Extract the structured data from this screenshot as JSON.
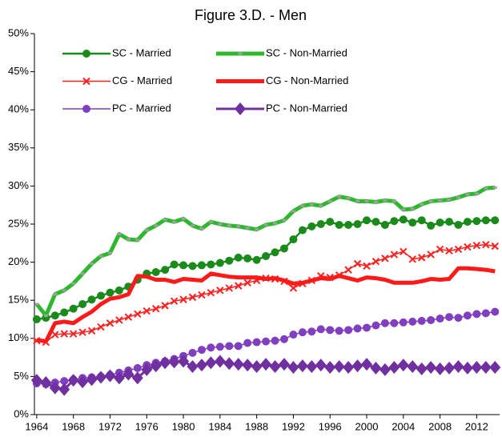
{
  "chart_data": {
    "type": "line",
    "title": "Figure 3.D. - Men",
    "x": [
      1964,
      1965,
      1966,
      1967,
      1968,
      1969,
      1970,
      1971,
      1972,
      1973,
      1974,
      1975,
      1976,
      1977,
      1978,
      1979,
      1980,
      1981,
      1982,
      1983,
      1984,
      1985,
      1986,
      1987,
      1988,
      1989,
      1990,
      1991,
      1992,
      1993,
      1994,
      1995,
      1996,
      1997,
      1998,
      1999,
      2000,
      2001,
      2002,
      2003,
      2004,
      2005,
      2006,
      2007,
      2008,
      2009,
      2010,
      2011,
      2012,
      2013,
      2014
    ],
    "xlim": [
      1963.75,
      2014.5
    ],
    "xticks": [
      1964,
      1968,
      1972,
      1976,
      1980,
      1984,
      1988,
      1992,
      1996,
      2000,
      2004,
      2008,
      2012
    ],
    "ylim": [
      0,
      50
    ],
    "yticks": [
      {
        "value": 0,
        "label": "0%"
      },
      {
        "value": 5,
        "label": "5%"
      },
      {
        "value": 10,
        "label": "10%"
      },
      {
        "value": 15,
        "label": "15%"
      },
      {
        "value": 20,
        "label": "20%"
      },
      {
        "value": 25,
        "label": "25%"
      },
      {
        "value": 30,
        "label": "30%"
      },
      {
        "value": 35,
        "label": "35%"
      },
      {
        "value": 40,
        "label": "40%"
      },
      {
        "value": 45,
        "label": "45%"
      },
      {
        "value": 50,
        "label": "50%"
      }
    ],
    "series": [
      {
        "name": "SC - Married",
        "color": "#1a8a1a",
        "line_width": 2.5,
        "marker": "circle",
        "marker_color": "#1a8a1a",
        "values": [
          12.5,
          12.7,
          13.0,
          13.4,
          13.9,
          14.5,
          15.1,
          15.6,
          16.0,
          16.3,
          16.8,
          17.7,
          18.5,
          18.7,
          19.0,
          19.7,
          19.6,
          19.5,
          19.6,
          19.7,
          19.9,
          20.2,
          20.6,
          20.5,
          20.3,
          20.8,
          21.3,
          21.8,
          23.0,
          24.2,
          24.7,
          25.0,
          25.3,
          24.9,
          24.9,
          25.0,
          25.5,
          25.3,
          24.9,
          25.4,
          25.6,
          25.2,
          25.5,
          24.8,
          25.2,
          25.3,
          24.9,
          25.3,
          25.4,
          25.5,
          25.5
        ]
      },
      {
        "name": "SC - Non-Married",
        "color": "#2eb82e",
        "line_width": 5,
        "marker": "square",
        "marker_color": "#a0a0a0",
        "values": [
          14.5,
          13.0,
          15.8,
          16.3,
          17.2,
          18.5,
          19.8,
          20.8,
          21.2,
          23.7,
          23.0,
          22.9,
          24.2,
          24.8,
          25.6,
          25.3,
          25.7,
          24.8,
          24.4,
          25.3,
          25.0,
          24.8,
          24.7,
          24.5,
          24.3,
          24.9,
          25.1,
          25.5,
          26.7,
          27.4,
          27.6,
          27.4,
          28.0,
          28.6,
          28.4,
          28.0,
          28.0,
          27.9,
          28.1,
          28.0,
          26.9,
          27.0,
          27.6,
          28.0,
          28.1,
          28.2,
          28.5,
          28.9,
          29.0,
          29.7,
          29.8
        ]
      },
      {
        "name": "CG - Married",
        "color": "#ff2020",
        "line_width": 1.5,
        "marker": "x",
        "marker_color": "#ff2020",
        "values": [
          9.7,
          9.5,
          10.5,
          10.6,
          10.6,
          10.8,
          11.0,
          11.5,
          12.0,
          12.4,
          12.8,
          13.2,
          13.6,
          13.9,
          14.3,
          14.9,
          15.1,
          15.4,
          15.7,
          16.0,
          16.3,
          16.6,
          16.9,
          17.3,
          17.6,
          17.9,
          17.8,
          17.5,
          16.6,
          17.2,
          17.6,
          18.2,
          18.0,
          18.3,
          19.0,
          19.8,
          19.5,
          20.1,
          20.5,
          21.0,
          21.4,
          20.4,
          20.6,
          21.0,
          21.7,
          21.5,
          21.7,
          22.0,
          22.2,
          22.3,
          22.1
        ]
      },
      {
        "name": "CG - Non-Married",
        "color": "#ff1a1a",
        "line_width": 5,
        "marker": "none",
        "marker_color": "#ff1a1a",
        "values": [
          9.8,
          9.6,
          12.0,
          12.2,
          12.0,
          12.8,
          13.5,
          14.5,
          15.2,
          15.4,
          15.8,
          18.2,
          18.1,
          17.7,
          17.7,
          17.4,
          17.8,
          17.7,
          17.6,
          18.5,
          18.3,
          18.1,
          18.0,
          18.0,
          18.0,
          17.8,
          17.9,
          17.6,
          17.2,
          17.3,
          17.6,
          17.9,
          17.8,
          18.2,
          17.9,
          17.6,
          18.0,
          17.9,
          17.7,
          17.3,
          17.3,
          17.3,
          17.5,
          17.8,
          17.7,
          17.8,
          19.2,
          19.2,
          19.1,
          19.0,
          18.8
        ]
      },
      {
        "name": "PC - Married",
        "color": "#7f3fbf",
        "line_width": 1.5,
        "marker": "circle",
        "marker_color": "#7f3fbf",
        "values": [
          4.1,
          4.0,
          4.2,
          4.4,
          4.6,
          4.8,
          4.9,
          5.0,
          5.2,
          5.5,
          5.8,
          6.1,
          6.5,
          6.8,
          7.0,
          7.3,
          7.7,
          8.1,
          8.5,
          8.8,
          8.9,
          9.0,
          9.0,
          9.4,
          9.5,
          9.6,
          9.7,
          9.9,
          10.5,
          10.8,
          10.9,
          11.2,
          11.1,
          11.0,
          11.1,
          11.3,
          11.4,
          11.7,
          12.0,
          12.0,
          12.1,
          12.2,
          12.3,
          12.4,
          12.6,
          12.8,
          12.7,
          13.0,
          13.2,
          13.3,
          13.5
        ]
      },
      {
        "name": "PC - Non-Married",
        "color": "#7030a0",
        "line_width": 3,
        "marker": "diamond",
        "marker_color": "#7030a0",
        "values": [
          4.5,
          4.2,
          3.5,
          3.3,
          4.5,
          4.3,
          4.6,
          4.9,
          5.1,
          4.8,
          5.3,
          4.8,
          5.9,
          6.4,
          6.8,
          6.9,
          7.0,
          6.3,
          6.5,
          6.8,
          7.0,
          6.7,
          6.6,
          6.5,
          6.3,
          6.6,
          6.3,
          6.6,
          6.2,
          6.4,
          6.3,
          6.5,
          6.2,
          6.3,
          6.2,
          6.4,
          6.6,
          6.1,
          5.9,
          6.2,
          6.5,
          6.3,
          6.0,
          6.2,
          6.0,
          6.1,
          6.3,
          6.1,
          6.2,
          6.2,
          6.2
        ]
      }
    ]
  }
}
